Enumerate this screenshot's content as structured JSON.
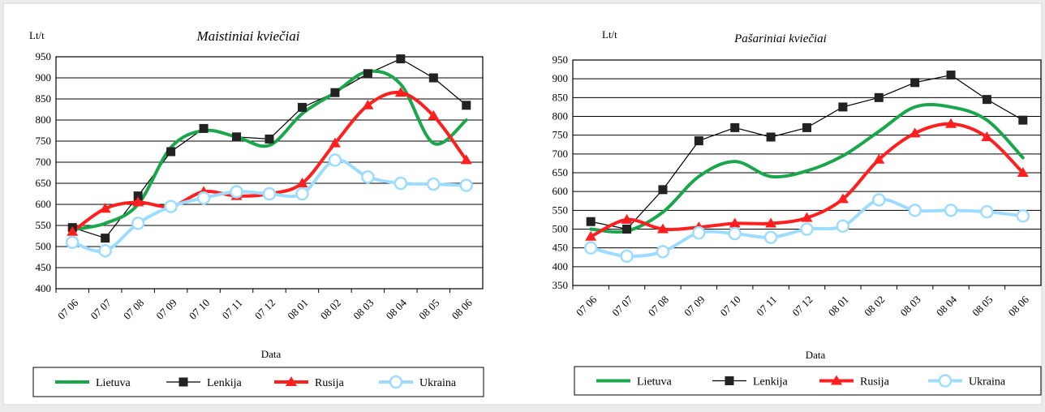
{
  "series_meta": [
    {
      "name": "Lietuva",
      "color": "#1aa64a",
      "marker": "none",
      "width": 4
    },
    {
      "name": "Lenkija",
      "color": "#000000",
      "marker": "square",
      "width": 1.2
    },
    {
      "name": "Rusija",
      "color": "#ff1f1f",
      "marker": "triangle",
      "width": 4
    },
    {
      "name": "Ukraina",
      "color": "#9ddcff",
      "marker": "circle",
      "width": 4
    }
  ],
  "chart_data": [
    {
      "type": "line",
      "title": "Maistiniai kviečiai",
      "ylabel": "Lt/t",
      "xlabel": "Data",
      "ylim": [
        400,
        950
      ],
      "yticks": [
        400,
        450,
        500,
        550,
        600,
        650,
        700,
        750,
        800,
        850,
        900,
        950
      ],
      "categories": [
        "07 06",
        "07 07",
        "07 08",
        "07 09",
        "07 10",
        "07 11",
        "07 12",
        "08 01",
        "08 02",
        "08 03",
        "08 04",
        "08 05",
        "08 06"
      ],
      "grid": true,
      "legend": "bottom",
      "series": [
        {
          "name": "Lietuva",
          "smooth": true,
          "values": [
            540,
            555,
            600,
            735,
            775,
            760,
            740,
            815,
            865,
            915,
            885,
            745,
            800
          ]
        },
        {
          "name": "Lenkija",
          "smooth": false,
          "values": [
            545,
            520,
            620,
            725,
            780,
            760,
            755,
            830,
            865,
            910,
            945,
            900,
            835
          ]
        },
        {
          "name": "Rusija",
          "smooth": false,
          "values": [
            535,
            590,
            605,
            595,
            630,
            620,
            625,
            650,
            745,
            835,
            865,
            810,
            705
          ]
        },
        {
          "name": "Ukraina",
          "smooth": false,
          "values": [
            510,
            490,
            555,
            595,
            615,
            630,
            625,
            625,
            705,
            665,
            650,
            648,
            645
          ]
        }
      ]
    },
    {
      "type": "line",
      "title": "Pašariniai kviečiai",
      "ylabel": "Lt/t",
      "xlabel": "Data",
      "ylim": [
        350,
        950
      ],
      "yticks": [
        350,
        400,
        450,
        500,
        550,
        600,
        650,
        700,
        750,
        800,
        850,
        900,
        950
      ],
      "categories": [
        "07 06",
        "07 07",
        "07 08",
        "07 09",
        "07 10",
        "07 11",
        "07 12",
        "08 01",
        "08 02",
        "08 03",
        "08 04",
        "08 05",
        "08 06"
      ],
      "grid": true,
      "legend": "bottom",
      "series": [
        {
          "name": "Lietuva",
          "smooth": true,
          "values": [
            500,
            495,
            545,
            640,
            680,
            640,
            655,
            695,
            760,
            825,
            825,
            790,
            690
          ]
        },
        {
          "name": "Lenkija",
          "smooth": false,
          "values": [
            520,
            500,
            605,
            735,
            770,
            745,
            770,
            825,
            850,
            890,
            910,
            845,
            790
          ]
        },
        {
          "name": "Rusija",
          "smooth": false,
          "values": [
            480,
            525,
            500,
            505,
            515,
            515,
            530,
            580,
            685,
            755,
            780,
            745,
            650
          ]
        },
        {
          "name": "Ukraina",
          "smooth": false,
          "values": [
            450,
            428,
            440,
            490,
            488,
            478,
            500,
            508,
            578,
            550,
            550,
            546,
            535
          ]
        }
      ]
    }
  ]
}
